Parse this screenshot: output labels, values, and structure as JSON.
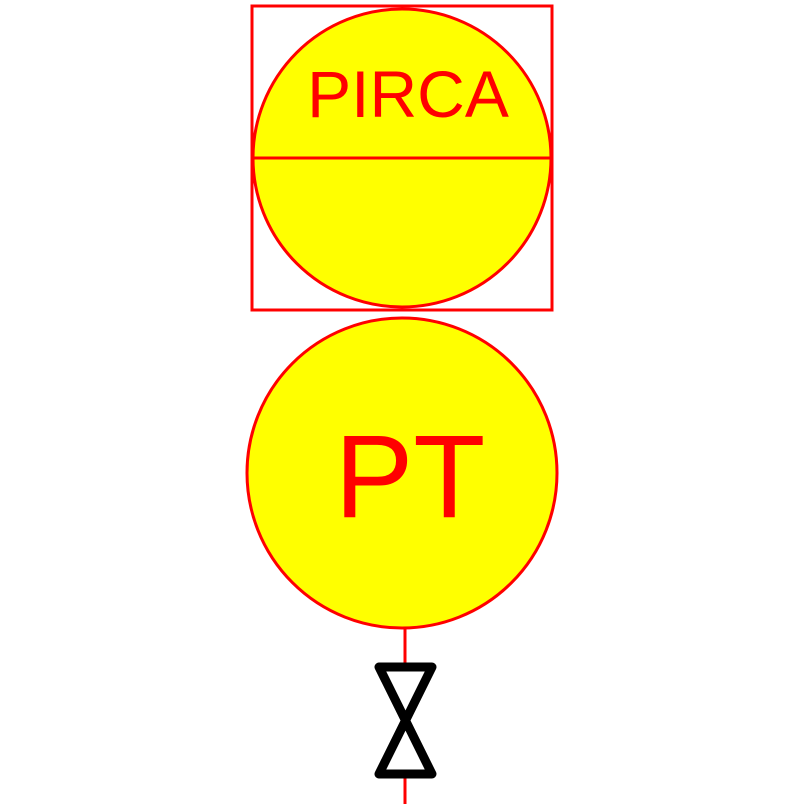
{
  "colors": {
    "line": "#ff0000",
    "fill": "#ffff00",
    "valve": "#000000",
    "background": "#ffffff"
  },
  "controller": {
    "label": "PIRCA",
    "shape": "circle-in-square",
    "divided": true
  },
  "transmitter": {
    "label": "PT",
    "shape": "circle"
  },
  "valve": {
    "icon": "gate-valve-icon"
  }
}
